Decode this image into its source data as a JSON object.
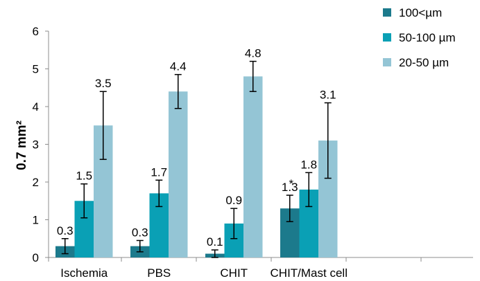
{
  "chart_data": {
    "type": "bar",
    "categories": [
      "Ischemia",
      "PBS",
      "CHIT",
      "CHIT/Mast cell"
    ],
    "series": [
      {
        "name": "100<µm",
        "color": "#1c7a8c",
        "values": [
          0.3,
          0.3,
          0.1,
          1.3
        ],
        "errors": [
          0.2,
          0.15,
          0.1,
          0.35
        ],
        "labels": [
          "0.3",
          "0.3",
          "0.1",
          "1.3"
        ]
      },
      {
        "name": "50-100 µm",
        "color": "#0aa0b5",
        "values": [
          1.5,
          1.7,
          0.9,
          1.8
        ],
        "errors": [
          0.45,
          0.35,
          0.4,
          0.45
        ],
        "labels": [
          "1.5",
          "1.7",
          "0.9",
          "1.8"
        ]
      },
      {
        "name": "20-50 µm",
        "color": "#94c5d5",
        "values": [
          3.5,
          4.4,
          4.8,
          3.1
        ],
        "errors": [
          0.9,
          0.45,
          0.4,
          1.0
        ],
        "labels": [
          "3.5",
          "4.4",
          "4.8",
          "3.1"
        ]
      }
    ],
    "annotations": [
      {
        "series": 0,
        "category": 3,
        "text": "*"
      }
    ],
    "ylabel": "0.7 mm²",
    "ylim": [
      0,
      6
    ],
    "yticks": [
      "0",
      "1",
      "2",
      "3",
      "4",
      "5",
      "6"
    ],
    "grid": false,
    "legend_position": "top-right"
  }
}
